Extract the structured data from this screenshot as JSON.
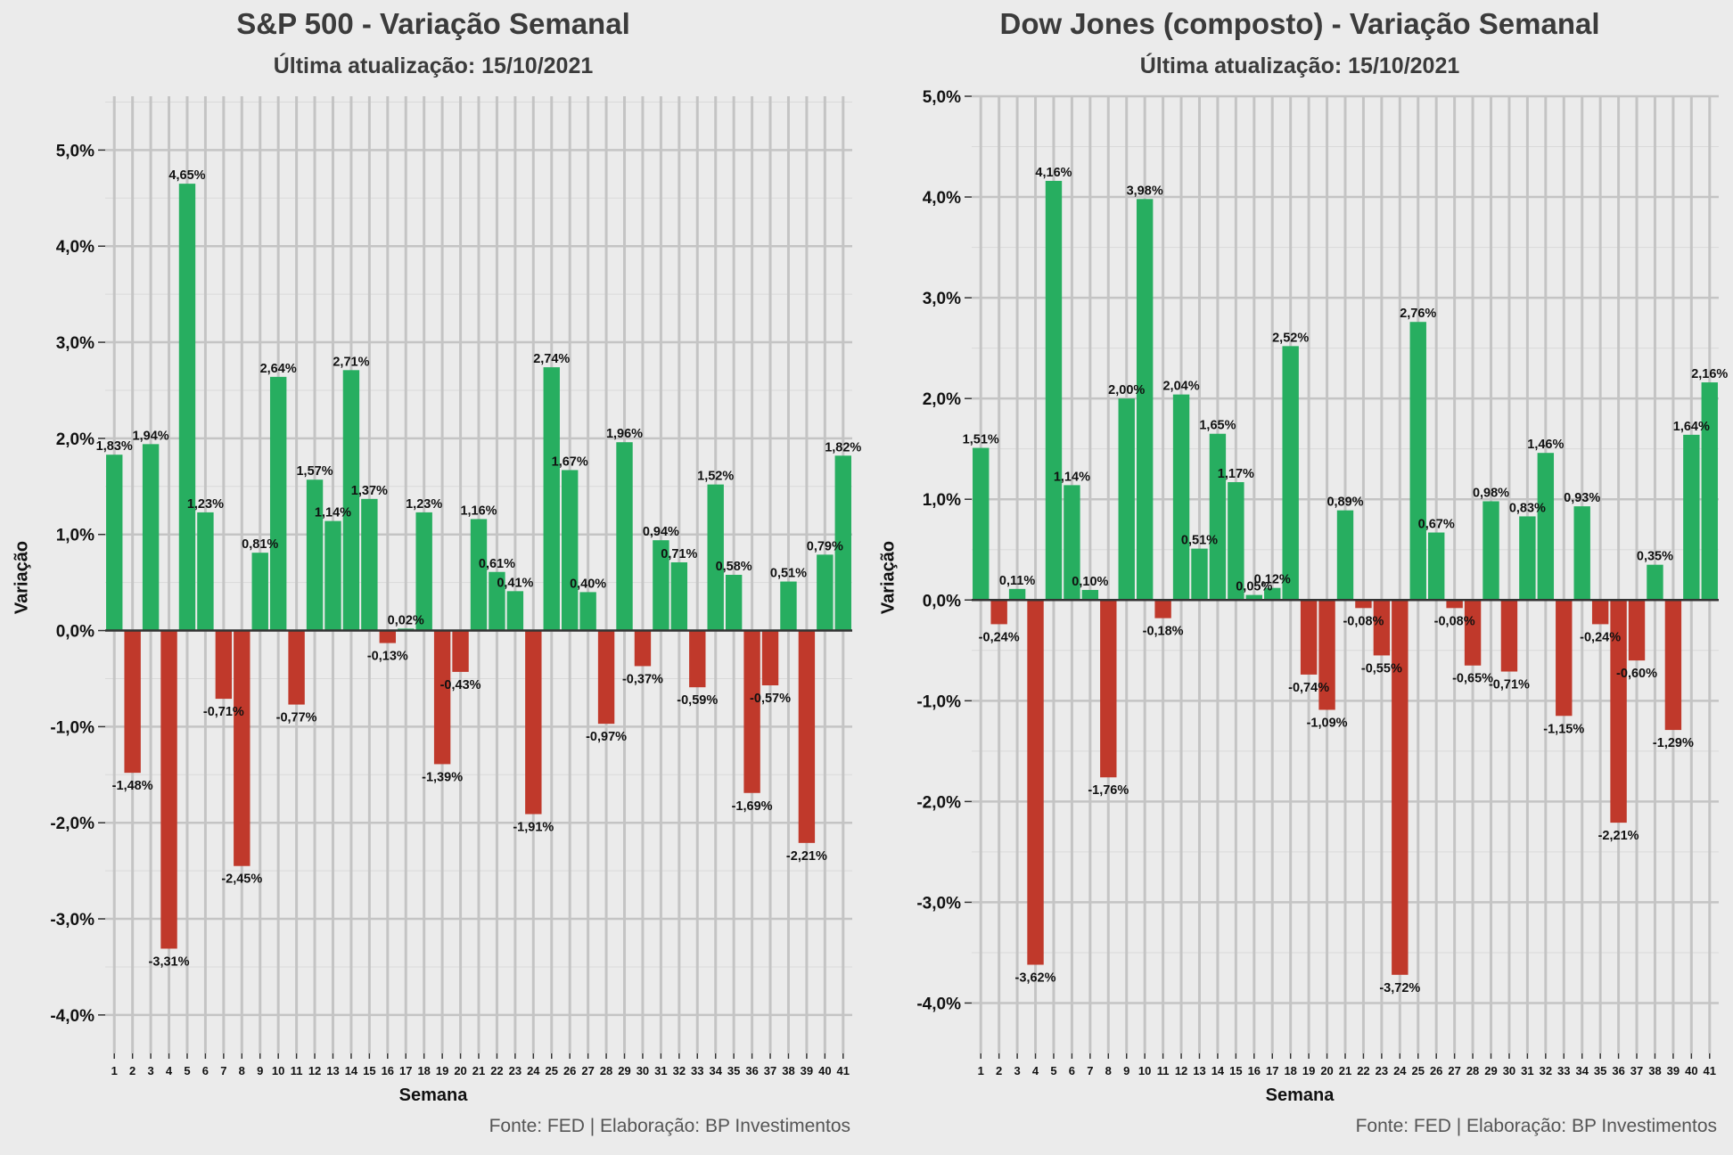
{
  "chart_data": [
    {
      "type": "bar",
      "title": "S&P 500 - Variação Semanal",
      "subtitle": "Última atualização: 15/10/2021",
      "xlabel": "Semana",
      "ylabel": "Variação",
      "caption": "Fonte: FED | Elaboração: BP Investimentos",
      "categories": [
        "1",
        "2",
        "3",
        "4",
        "5",
        "6",
        "7",
        "8",
        "9",
        "10",
        "11",
        "12",
        "13",
        "14",
        "15",
        "16",
        "17",
        "18",
        "19",
        "20",
        "21",
        "22",
        "23",
        "24",
        "25",
        "26",
        "27",
        "28",
        "29",
        "30",
        "31",
        "32",
        "33",
        "34",
        "35",
        "36",
        "37",
        "38",
        "39",
        "40",
        "41"
      ],
      "values": [
        1.83,
        -1.48,
        1.94,
        -3.31,
        4.65,
        1.23,
        -0.71,
        -2.45,
        0.81,
        2.64,
        -0.77,
        1.57,
        1.14,
        2.71,
        1.37,
        -0.13,
        0.02,
        1.23,
        -1.39,
        -0.43,
        1.16,
        0.61,
        0.41,
        -1.91,
        2.74,
        1.67,
        0.4,
        -0.97,
        1.96,
        -0.37,
        0.94,
        0.71,
        -0.59,
        1.52,
        0.58,
        -1.69,
        -0.57,
        0.51,
        -2.21,
        0.79,
        1.82
      ],
      "data_labels": [
        "1,83%",
        "-1,48%",
        "1,94%",
        "-3,31%",
        "4,65%",
        "1,23%",
        "-0,71%",
        "-2,45%",
        "0,81%",
        "2,64%",
        "-0,77%",
        "1,57%",
        "1,14%",
        "2,71%",
        "1,37%",
        "-0,13%",
        "0,02%",
        "1,23%",
        "-1,39%",
        "-0,43%",
        "1,16%",
        "0,61%",
        "0,41%",
        "-1,91%",
        "2,74%",
        "1,67%",
        "0,40%",
        "-0,97%",
        "1,96%",
        "-0,37%",
        "0,94%",
        "0,71%",
        "-0,59%",
        "1,52%",
        "0,58%",
        "-1,69%",
        "-0,57%",
        "0,51%",
        "-2,21%",
        "0,79%",
        "1,82%"
      ],
      "yticks": [
        -4,
        -3,
        -2,
        -1,
        0,
        1,
        2,
        3,
        4,
        5
      ],
      "ytick_labels": [
        "-4,0%",
        "-3,0%",
        "-2,0%",
        "-1,0%",
        "0,0%",
        "1,0%",
        "2,0%",
        "3,0%",
        "4,0%",
        "5,0%"
      ],
      "ylim": [
        -4.4,
        5.56
      ],
      "colors": {
        "positive": "#27ae60",
        "negative": "#c0392b"
      },
      "grid": true,
      "legend": "none"
    },
    {
      "type": "bar",
      "title": "Dow Jones (composto) - Variação Semanal",
      "subtitle": "Última atualização: 15/10/2021",
      "xlabel": "Semana",
      "ylabel": "Variação",
      "caption": "Fonte: FED | Elaboração: BP Investimentos",
      "categories": [
        "1",
        "2",
        "3",
        "4",
        "5",
        "6",
        "7",
        "8",
        "9",
        "10",
        "11",
        "12",
        "13",
        "14",
        "15",
        "16",
        "17",
        "18",
        "19",
        "20",
        "21",
        "22",
        "23",
        "24",
        "25",
        "26",
        "27",
        "28",
        "29",
        "30",
        "31",
        "32",
        "33",
        "34",
        "35",
        "36",
        "37",
        "38",
        "39",
        "40",
        "41"
      ],
      "values": [
        1.51,
        -0.24,
        0.11,
        -3.62,
        4.16,
        1.14,
        0.1,
        -1.76,
        2.0,
        3.98,
        -0.18,
        2.04,
        0.51,
        1.65,
        1.17,
        0.05,
        0.12,
        2.52,
        -0.74,
        -1.09,
        0.89,
        -0.08,
        -0.55,
        -3.72,
        2.76,
        0.67,
        -0.08,
        -0.65,
        0.98,
        -0.71,
        0.83,
        1.46,
        -1.15,
        0.93,
        -0.24,
        -2.21,
        -0.6,
        0.35,
        -1.29,
        1.64,
        2.16
      ],
      "data_labels": [
        "1,51%",
        "-0,24%",
        "0,11%",
        "-3,62%",
        "4,16%",
        "1,14%",
        "0,10%",
        "-1,76%",
        "2,00%",
        "3,98%",
        "-0,18%",
        "2,04%",
        "0,51%",
        "1,65%",
        "1,17%",
        "0,05%",
        "0,12%",
        "2,52%",
        "-0,74%",
        "-1,09%",
        "0,89%",
        "-0,08%",
        "-0,55%",
        "-3,72%",
        "2,76%",
        "0,67%",
        "-0,08%",
        "-0,65%",
        "0,98%",
        "-0,71%",
        "0,83%",
        "1,46%",
        "-1,15%",
        "0,93%",
        "-0,24%",
        "-2,21%",
        "-0,60%",
        "0,35%",
        "-1,29%",
        "1,64%",
        "2,16%"
      ],
      "yticks": [
        -4,
        -3,
        -2,
        -1,
        0,
        1,
        2,
        3,
        4,
        5
      ],
      "ytick_labels": [
        "-4,0%",
        "-3,0%",
        "-2,0%",
        "-1,0%",
        "0,0%",
        "1,0%",
        "2,0%",
        "3,0%",
        "4,0%",
        "5,0%"
      ],
      "ylim": [
        -4.5,
        5.0
      ],
      "colors": {
        "positive": "#27ae60",
        "negative": "#c0392b"
      },
      "grid": true,
      "legend": "none"
    }
  ]
}
